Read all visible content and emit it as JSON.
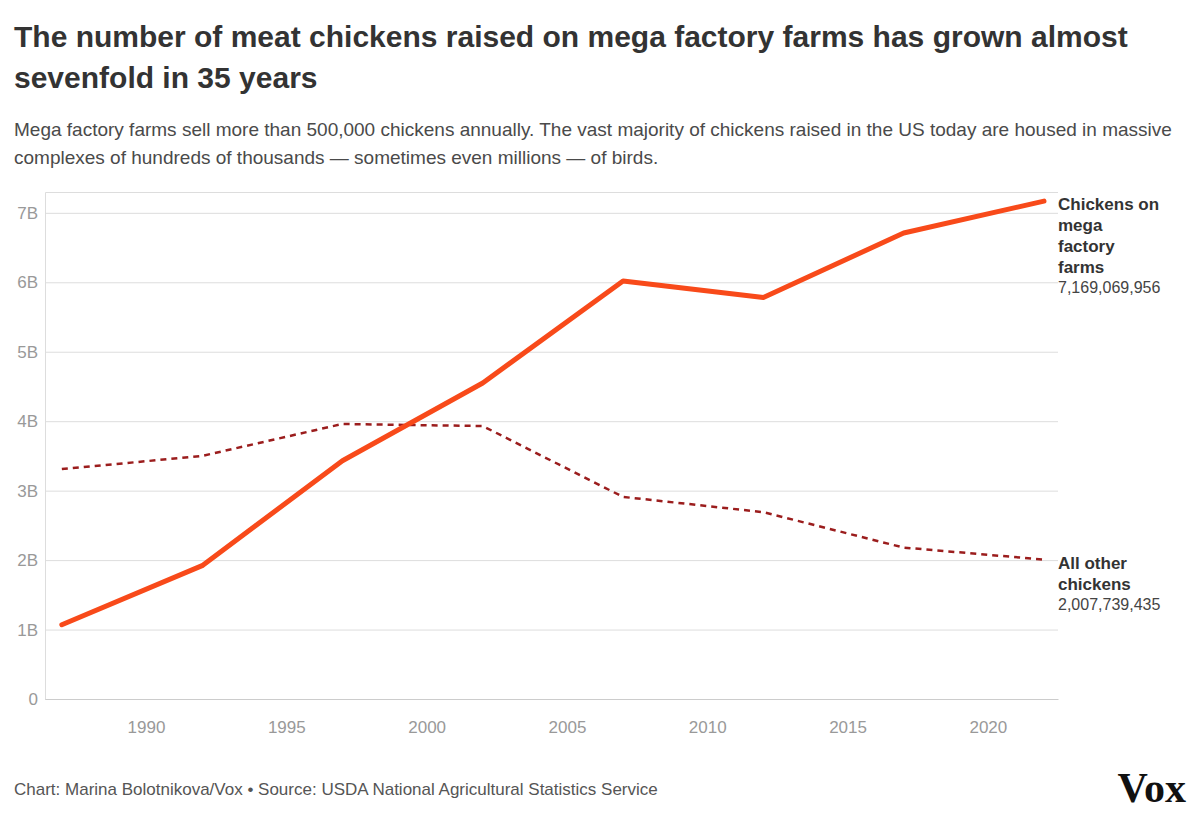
{
  "chart_data": {
    "type": "line",
    "title": "The number of meat chickens raised on mega factory farms has grown almost sevenfold in 35 years",
    "subtitle": "Mega factory farms sell more than 500,000 chickens annually. The vast majority of chickens raised in the US today are housed in massive complexes of hundreds of thousands — sometimes even millions — of birds.",
    "source": "Chart: Marina Bolotnikova/Vox • Source: USDA National Agricultural Statistics Service",
    "logo": "Vox",
    "x": [
      1987,
      1992,
      1997,
      2002,
      2007,
      2012,
      2017,
      2022
    ],
    "series": [
      {
        "name": "Chickens on mega factory farms",
        "color": "#f84a1a",
        "line_style": "solid",
        "values": [
          1.07,
          1.92,
          3.43,
          4.55,
          6.02,
          5.78,
          6.71,
          7.169069956
        ],
        "value_labels": [
          null,
          null,
          null,
          null,
          null,
          null,
          null,
          "7,169,069,956"
        ]
      },
      {
        "name": "All other chickens",
        "color": "#9b1d1d",
        "line_style": "dashed",
        "values": [
          3.31,
          3.5,
          3.96,
          3.93,
          2.91,
          2.69,
          2.18,
          2.007739435
        ],
        "value_labels": [
          null,
          null,
          null,
          null,
          null,
          null,
          null,
          "2,007,739,435"
        ]
      }
    ],
    "xlim": [
      1986.4,
      2022.5
    ],
    "xticks": [
      1990,
      1995,
      2000,
      2005,
      2010,
      2015,
      2020
    ],
    "ylim": [
      0,
      7.3
    ],
    "yticks": [
      0,
      {
        "value": 1,
        "label": "1B"
      },
      {
        "value": 2,
        "label": "2B"
      },
      {
        "value": 3,
        "label": "3B"
      },
      {
        "value": 4,
        "label": "4B"
      },
      {
        "value": 5,
        "label": "5B"
      },
      {
        "value": 6,
        "label": "6B"
      },
      {
        "value": 7,
        "label": "7B"
      }
    ],
    "grid": true,
    "data_labels": true
  }
}
